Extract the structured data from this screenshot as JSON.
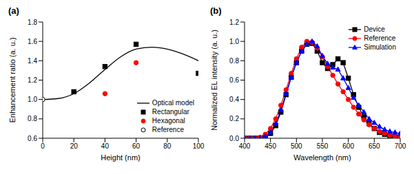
{
  "chart_data": [
    {
      "type": "line",
      "title": "(a)",
      "x_label": "Height (nm)",
      "y_label": "Enhancement ratio (a. u.)",
      "xlim": [
        0,
        100
      ],
      "xticks": [
        0,
        20,
        40,
        60,
        80,
        100
      ],
      "ylim": [
        0.6,
        1.8
      ],
      "yticks": [
        0.6,
        0.8,
        {
          "value": 1,
          "label": "1.0"
        },
        1.2,
        1.4,
        1.6,
        1.8
      ],
      "grid": false,
      "legend": "lower right",
      "series": [
        {
          "name": "Optical model",
          "type": "line",
          "color": "#000000",
          "marker": "none",
          "line_style": "solid",
          "x": [
            0,
            10,
            20,
            30,
            40,
            50,
            60,
            70,
            80,
            90,
            100
          ],
          "values": [
            1.0,
            1.01,
            1.06,
            1.17,
            1.31,
            1.44,
            1.52,
            1.54,
            1.52,
            1.47,
            1.4
          ]
        },
        {
          "name": "Rectangular",
          "type": "scatter",
          "color": "#000000",
          "marker": "square",
          "line_style": "none",
          "x": [
            20,
            40,
            60,
            100
          ],
          "values": [
            1.08,
            1.34,
            1.57,
            1.27
          ]
        },
        {
          "name": "Hexagonal",
          "type": "scatter",
          "color": "#ff0000",
          "marker": "circle",
          "line_style": "none",
          "x": [
            40,
            60
          ],
          "values": [
            1.06,
            1.38
          ]
        },
        {
          "name": "Reference",
          "type": "scatter",
          "color": "#000000",
          "marker": "open_circle",
          "line_style": "none",
          "x": [
            0
          ],
          "values": [
            1.0
          ]
        }
      ]
    },
    {
      "type": "line",
      "title": "(b)",
      "x_label": "Wavelength (nm)",
      "y_label": "Normalized EL intensity (a. u.)",
      "xlim": [
        400,
        700
      ],
      "xticks": [
        400,
        450,
        500,
        550,
        600,
        650,
        700
      ],
      "ylim": [
        0,
        1.2
      ],
      "yticks": [
        {
          "value": 0,
          "label": "0.0"
        },
        0.2,
        0.4,
        0.6,
        0.8,
        {
          "value": 1,
          "label": "1.0"
        },
        1.2
      ],
      "grid": false,
      "legend": "upper right",
      "series": [
        {
          "name": "Device",
          "type": "line",
          "color": "#000000",
          "marker": "square",
          "line_style": "solid",
          "x": [
            400,
            410,
            420,
            430,
            440,
            450,
            460,
            470,
            480,
            490,
            500,
            510,
            520,
            530,
            540,
            550,
            560,
            570,
            580,
            590,
            600,
            610,
            620,
            630,
            640,
            650,
            660,
            670,
            680,
            690,
            700
          ],
          "values": [
            0,
            0,
            0,
            0,
            0.01,
            0.05,
            0.13,
            0.27,
            0.45,
            0.63,
            0.78,
            0.9,
            0.97,
            0.98,
            0.9,
            0.78,
            0.72,
            0.76,
            0.82,
            0.78,
            0.62,
            0.45,
            0.32,
            0.22,
            0.15,
            0.1,
            0.06,
            0.04,
            0.02,
            0.01,
            0.01
          ]
        },
        {
          "name": "Reference",
          "type": "line",
          "color": "#ff0000",
          "marker": "circle",
          "line_style": "solid",
          "x": [
            400,
            410,
            420,
            430,
            440,
            450,
            460,
            470,
            480,
            490,
            500,
            510,
            520,
            530,
            540,
            550,
            560,
            570,
            580,
            590,
            600,
            610,
            620,
            630,
            640,
            650,
            660,
            670,
            680,
            690,
            700
          ],
          "values": [
            0,
            0,
            0,
            0.01,
            0.04,
            0.1,
            0.2,
            0.34,
            0.5,
            0.67,
            0.82,
            0.94,
            1.0,
            0.99,
            0.93,
            0.84,
            0.74,
            0.65,
            0.56,
            0.48,
            0.4,
            0.32,
            0.25,
            0.19,
            0.14,
            0.1,
            0.07,
            0.05,
            0.03,
            0.02,
            0.01
          ]
        },
        {
          "name": "Simulation",
          "type": "line",
          "color": "#0000ff",
          "marker": "triangle",
          "line_style": "solid",
          "x": [
            400,
            410,
            420,
            430,
            440,
            450,
            460,
            470,
            480,
            490,
            500,
            510,
            520,
            530,
            540,
            550,
            560,
            570,
            580,
            590,
            600,
            610,
            620,
            630,
            640,
            650,
            660,
            670,
            680,
            690,
            700
          ],
          "values": [
            0,
            0,
            0,
            0,
            0.02,
            0.06,
            0.15,
            0.29,
            0.46,
            0.63,
            0.78,
            0.9,
            0.97,
            1.0,
            0.95,
            0.85,
            0.77,
            0.73,
            0.71,
            0.62,
            0.52,
            0.42,
            0.34,
            0.27,
            0.2,
            0.16,
            0.12,
            0.09,
            0.07,
            0.06,
            0.05
          ]
        }
      ]
    }
  ]
}
